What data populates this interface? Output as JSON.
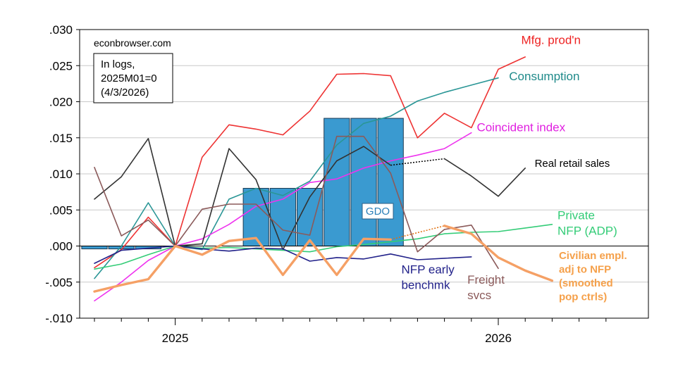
{
  "chart_data": {
    "type": "line",
    "source_label": "econbrowser.com",
    "note_lines": [
      "In logs,",
      "2025M01=0",
      "(4/3/2026)"
    ],
    "ylim": [
      -0.01,
      0.03
    ],
    "yticks": [
      -0.01,
      -0.005,
      0.0,
      0.005,
      0.01,
      0.015,
      0.02,
      0.025,
      0.03
    ],
    "ytick_labels": [
      "-.010",
      "-.005",
      ".000",
      ".005",
      ".010",
      ".015",
      ".020",
      ".025",
      ".030"
    ],
    "xlim": [
      0,
      19
    ],
    "x_labels": [
      {
        "x": 3,
        "label": "2025"
      },
      {
        "x": 15,
        "label": "2026"
      }
    ],
    "months": [
      "2024-10",
      "2024-11",
      "2024-12",
      "2025-01",
      "2025-02",
      "2025-03",
      "2025-04",
      "2025-05",
      "2025-06",
      "2025-07",
      "2025-08",
      "2025-09",
      "2025-10",
      "2025-11",
      "2025-12",
      "2026-01",
      "2026-02",
      "2026-03"
    ],
    "gdo": {
      "label": "GDO",
      "color": "#3a9ad0",
      "bars": [
        {
          "month": "2024-10",
          "value": -0.0004
        },
        {
          "month": "2024-11",
          "value": -0.0004
        },
        {
          "month": "2024-12",
          "value": -0.0004
        },
        {
          "month": "2025-04",
          "value": 0.008
        },
        {
          "month": "2025-05",
          "value": 0.008
        },
        {
          "month": "2025-06",
          "value": 0.008
        },
        {
          "month": "2025-07",
          "value": 0.0177
        },
        {
          "month": "2025-08",
          "value": 0.0177
        },
        {
          "month": "2025-09",
          "value": 0.0177
        }
      ]
    },
    "series": [
      {
        "name": "Mfg. prod'n",
        "color": "#ee3333",
        "width": 1.6,
        "values": [
          -0.003,
          -0.0005,
          0.004,
          0.0,
          0.0123,
          0.0168,
          0.0162,
          0.0154,
          0.0187,
          0.0238,
          0.0239,
          0.0236,
          0.015,
          0.0184,
          0.0164,
          0.0245,
          0.0262
        ]
      },
      {
        "name": "Consumption",
        "color": "#2a9696",
        "width": 1.6,
        "values": [
          -0.0045,
          0.0,
          0.006,
          0.0,
          -0.0005,
          0.0065,
          0.008,
          0.007,
          0.009,
          0.014,
          0.017,
          0.018,
          0.0201,
          0.0213,
          0.0223,
          0.0233
        ]
      },
      {
        "name": "Coincident index",
        "color": "#ee33ee",
        "width": 1.6,
        "values": [
          -0.0076,
          -0.005,
          -0.002,
          0.0,
          0.001,
          0.003,
          0.0055,
          0.0065,
          0.0088,
          0.0093,
          0.0108,
          0.0118,
          0.0126,
          0.0135,
          0.0157
        ]
      },
      {
        "name": "Real retail sales",
        "color": "#333333",
        "width": 1.6,
        "values": [
          0.0065,
          0.0096,
          0.0149,
          0.0,
          0.0003,
          0.0135,
          0.0092,
          -0.0005,
          0.0068,
          0.0118,
          0.0138,
          0.0112,
          null,
          0.0121,
          0.0097,
          0.0069,
          0.0108
        ]
      },
      {
        "name": "Private NFP (ADP)",
        "color": "#33cc77",
        "width": 1.6,
        "values": [
          -0.0032,
          -0.0025,
          -0.0012,
          0.0,
          -0.0003,
          -0.0002,
          -0.0004,
          -0.0006,
          -0.0008,
          -0.0001,
          0.0002,
          0.0006,
          0.001,
          0.0017,
          0.0019,
          0.002,
          0.0025,
          0.003
        ]
      },
      {
        "name": "NFP early benchmk",
        "color": "#22228a",
        "width": 1.6,
        "values": [
          -0.0024,
          -0.0006,
          -0.0003,
          0.0,
          -0.0004,
          -0.0007,
          -0.0003,
          -0.0004,
          -0.0021,
          -0.0016,
          -0.0018,
          -0.0011,
          -0.0019,
          -0.0017,
          -0.0015
        ]
      },
      {
        "name": "Freight svcs",
        "color": "#8b5a5a",
        "width": 1.6,
        "values": [
          0.0109,
          0.0014,
          0.0036,
          0.0,
          0.0051,
          0.0058,
          0.0058,
          0.0022,
          0.0015,
          0.0152,
          0.0152,
          0.0101,
          -0.0008,
          0.0023,
          0.0029,
          -0.0031
        ]
      },
      {
        "name": "Civilian empl. adj to NFP (smoothed pop ctrls)",
        "color": "#f5a065",
        "width": 3.4,
        "values": [
          -0.0063,
          -0.0054,
          -0.0046,
          0.0,
          -0.0012,
          0.0007,
          0.0011,
          -0.004,
          0.0008,
          -0.004,
          0.001,
          0.0009,
          null,
          0.0028,
          0.0017,
          -0.0016,
          -0.0034,
          -0.0048
        ]
      }
    ],
    "dotted_links": [
      {
        "color": "#000000",
        "x1": 11,
        "y1": 0.0112,
        "x2": 13,
        "y2": 0.0121
      },
      {
        "color": "#e07010",
        "x1": 11,
        "y1": 0.0009,
        "x2": 13,
        "y2": 0.0028
      }
    ],
    "series_labels": [
      {
        "lines": [
          "Mfg. prod'n"
        ],
        "color": "#ee2222",
        "bold": false,
        "size": 17,
        "x": 15.85,
        "y": 0.028
      },
      {
        "lines": [
          "Consumption"
        ],
        "color": "#1f8a8a",
        "bold": false,
        "size": 17,
        "x": 15.4,
        "y": 0.023
      },
      {
        "lines": [
          "Coincident index"
        ],
        "color": "#e020e0",
        "bold": false,
        "size": 17,
        "x": 14.2,
        "y": 0.0159
      },
      {
        "lines": [
          "Real retail sales"
        ],
        "color": "#000000",
        "bold": false,
        "size": 15,
        "x": 16.35,
        "y": 0.011
      },
      {
        "lines": [
          "Private",
          "NFP (ADP)"
        ],
        "color": "#33cc77",
        "bold": false,
        "size": 17,
        "x": 17.2,
        "y": 0.0037
      },
      {
        "lines": [
          "Civilian empl.",
          "adj to NFP",
          "(smoothed",
          "pop ctrls)"
        ],
        "color": "#f5a04a",
        "bold": true,
        "size": 15,
        "x": 17.25,
        "y": -0.0018
      },
      {
        "lines": [
          "Freight",
          "svcs"
        ],
        "color": "#8b5a5a",
        "bold": false,
        "size": 17,
        "x": 13.85,
        "y": -0.0052
      },
      {
        "lines": [
          "NFP early",
          "benchmk"
        ],
        "color": "#22228a",
        "bold": false,
        "size": 17,
        "x": 11.4,
        "y": -0.0038
      }
    ]
  }
}
